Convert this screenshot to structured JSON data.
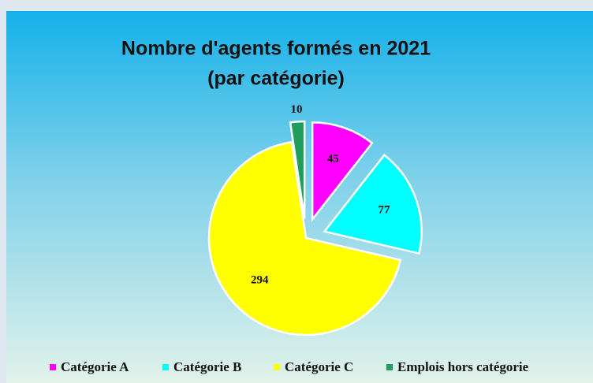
{
  "chart_data": {
    "type": "pie",
    "title": "Nombre d'agents formés en 2021",
    "subtitle": "(par catégorie)",
    "categories": [
      "Catégorie A",
      "Catégorie B",
      "Catégorie C",
      "Emplois hors catégorie"
    ],
    "values": [
      45,
      77,
      294,
      10
    ],
    "colors": [
      "#ff00ff",
      "#00ffff",
      "#ffff00",
      "#1e9e5a"
    ],
    "exploded": [
      true,
      true,
      false,
      true
    ],
    "legend": "bottom"
  }
}
